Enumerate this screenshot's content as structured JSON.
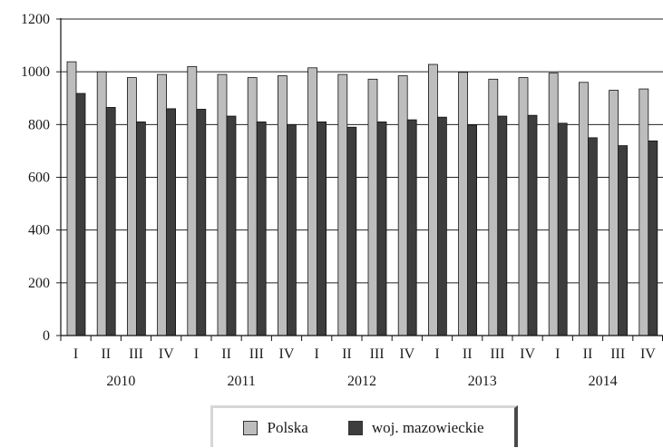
{
  "chart_data": {
    "type": "bar",
    "title": "",
    "xlabel": "",
    "ylabel": "",
    "ylim": [
      0,
      1200
    ],
    "yticks": [
      "0",
      "200",
      "400",
      "600",
      "800",
      "1000",
      "1200"
    ],
    "grid": true,
    "legend_position": "bottom",
    "groups": [
      "2010",
      "2011",
      "2012",
      "2013",
      "2014"
    ],
    "categories": [
      "I",
      "II",
      "III",
      "IV",
      "I",
      "II",
      "III",
      "IV",
      "I",
      "II",
      "III",
      "IV",
      "I",
      "II",
      "III",
      "IV",
      "I",
      "II",
      "III",
      "IV"
    ],
    "series": [
      {
        "name": "Polska",
        "color": "#bdbdbd",
        "values": [
          1038,
          1000,
          978,
          990,
          1020,
          990,
          978,
          985,
          1015,
          990,
          972,
          985,
          1028,
          998,
          972,
          978,
          995,
          960,
          930,
          935
        ]
      },
      {
        "name": "woj. mazowieckie",
        "color": "#3d3d3d",
        "values": [
          918,
          865,
          810,
          860,
          858,
          832,
          810,
          800,
          810,
          790,
          810,
          818,
          828,
          798,
          832,
          835,
          805,
          750,
          720,
          738
        ]
      }
    ]
  }
}
